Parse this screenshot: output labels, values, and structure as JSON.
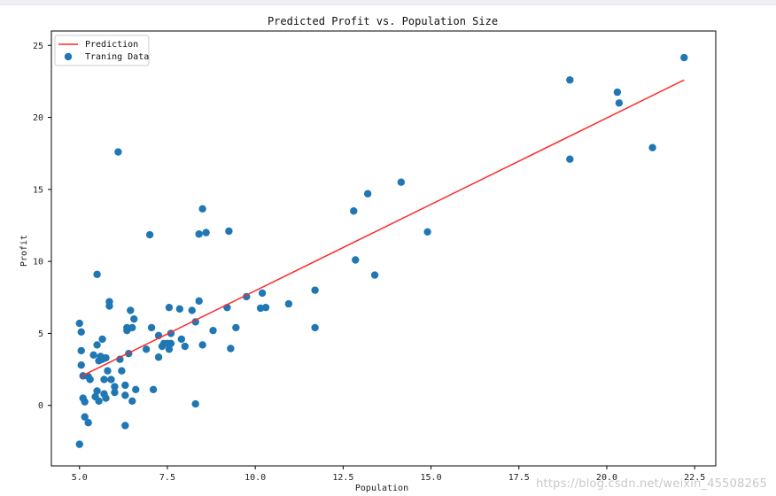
{
  "chart_data": {
    "type": "scatter",
    "title": "Predicted Profit vs. Population Size",
    "xlabel": "Population",
    "ylabel": "Profit",
    "xlim": [
      4.2,
      23.1
    ],
    "ylim": [
      -4.2,
      26.0
    ],
    "xticks": [
      5.0,
      7.5,
      10.0,
      12.5,
      15.0,
      17.5,
      20.0,
      22.5
    ],
    "xtick_labels": [
      "5.0",
      "7.5",
      "10.0",
      "12.5",
      "15.0",
      "17.5",
      "20.0",
      "22.5"
    ],
    "yticks": [
      0,
      5,
      10,
      15,
      20,
      25
    ],
    "ytick_labels": [
      "0",
      "5",
      "10",
      "15",
      "20",
      "25"
    ],
    "legend": {
      "location": "top-left",
      "entries": [
        "Prediction",
        "Traning Data"
      ]
    },
    "series": [
      {
        "name": "Prediction",
        "kind": "line",
        "color": "#ff2a2a",
        "x": [
          5.03,
          22.2
        ],
        "y": [
          2.0,
          22.6
        ]
      },
      {
        "name": "Traning Data",
        "kind": "scatter",
        "color": "#1f77b4",
        "points": [
          [
            5.0,
            5.7
          ],
          [
            5.05,
            5.1
          ],
          [
            5.05,
            3.8
          ],
          [
            5.05,
            2.8
          ],
          [
            5.1,
            2.05
          ],
          [
            5.1,
            0.5
          ],
          [
            5.15,
            0.25
          ],
          [
            5.15,
            -0.8
          ],
          [
            5.0,
            -2.7
          ],
          [
            5.25,
            -1.2
          ],
          [
            5.25,
            2.0
          ],
          [
            5.3,
            1.8
          ],
          [
            5.4,
            3.5
          ],
          [
            5.45,
            0.6
          ],
          [
            5.5,
            4.2
          ],
          [
            5.5,
            1.0
          ],
          [
            5.55,
            0.3
          ],
          [
            5.55,
            3.1
          ],
          [
            5.6,
            3.4
          ],
          [
            5.65,
            4.6
          ],
          [
            5.65,
            3.2
          ],
          [
            5.7,
            1.8
          ],
          [
            5.7,
            0.8
          ],
          [
            5.75,
            3.3
          ],
          [
            5.75,
            0.5
          ],
          [
            5.8,
            2.4
          ],
          [
            5.85,
            7.2
          ],
          [
            5.85,
            6.9
          ],
          [
            5.9,
            1.8
          ],
          [
            6.0,
            1.3
          ],
          [
            6.0,
            0.9
          ],
          [
            5.5,
            9.1
          ],
          [
            6.1,
            17.6
          ],
          [
            6.15,
            3.2
          ],
          [
            6.2,
            2.4
          ],
          [
            6.3,
            1.4
          ],
          [
            6.3,
            0.7
          ],
          [
            6.3,
            -1.4
          ],
          [
            6.35,
            5.2
          ],
          [
            6.35,
            5.4
          ],
          [
            6.4,
            3.6
          ],
          [
            6.45,
            6.6
          ],
          [
            6.5,
            5.4
          ],
          [
            6.5,
            0.3
          ],
          [
            6.55,
            6.0
          ],
          [
            6.6,
            1.1
          ],
          [
            6.9,
            3.9
          ],
          [
            7.0,
            11.85
          ],
          [
            7.05,
            5.4
          ],
          [
            7.1,
            1.1
          ],
          [
            7.25,
            3.35
          ],
          [
            7.25,
            4.85
          ],
          [
            7.35,
            4.1
          ],
          [
            7.4,
            4.3
          ],
          [
            7.5,
            4.3
          ],
          [
            7.55,
            3.9
          ],
          [
            7.55,
            6.8
          ],
          [
            7.6,
            4.3
          ],
          [
            7.6,
            5.0
          ],
          [
            7.85,
            6.7
          ],
          [
            7.9,
            4.6
          ],
          [
            8.0,
            4.1
          ],
          [
            8.2,
            6.6
          ],
          [
            8.3,
            5.8
          ],
          [
            8.3,
            0.1
          ],
          [
            8.4,
            7.25
          ],
          [
            8.4,
            11.9
          ],
          [
            8.5,
            13.65
          ],
          [
            8.5,
            4.2
          ],
          [
            8.6,
            12.0
          ],
          [
            8.8,
            5.2
          ],
          [
            9.2,
            6.8
          ],
          [
            9.25,
            12.1
          ],
          [
            9.3,
            3.95
          ],
          [
            9.45,
            5.4
          ],
          [
            9.75,
            7.55
          ],
          [
            10.15,
            6.75
          ],
          [
            10.2,
            7.8
          ],
          [
            10.3,
            6.8
          ],
          [
            10.95,
            7.05
          ],
          [
            11.7,
            8.0
          ],
          [
            11.7,
            5.4
          ],
          [
            12.8,
            13.5
          ],
          [
            12.85,
            10.1
          ],
          [
            13.2,
            14.7
          ],
          [
            13.4,
            9.05
          ],
          [
            14.15,
            15.5
          ],
          [
            14.9,
            12.05
          ],
          [
            18.95,
            22.6
          ],
          [
            18.95,
            17.1
          ],
          [
            20.3,
            21.75
          ],
          [
            20.35,
            21.0
          ],
          [
            21.3,
            17.9
          ],
          [
            22.2,
            24.15
          ]
        ]
      }
    ]
  },
  "watermark": "https://blog.csdn.net/weixin_45508265"
}
